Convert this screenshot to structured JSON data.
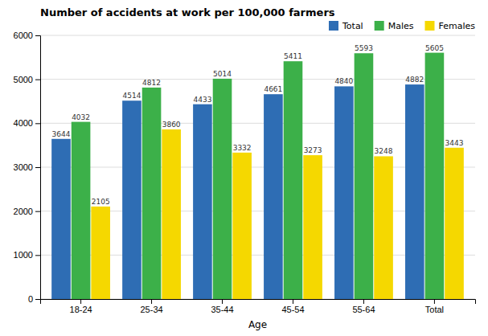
{
  "chart_data": {
    "type": "bar",
    "title": "Number of accidents at work per 100,000 farmers",
    "xlabel": "Age",
    "categories": [
      "18-24",
      "25-34",
      "35-44",
      "45-54",
      "55-64",
      "Total"
    ],
    "series": [
      {
        "name": "Total",
        "color": "#2e6db4",
        "values": [
          3644,
          4514,
          4433,
          4661,
          4840,
          4882
        ]
      },
      {
        "name": "Males",
        "color": "#3cb049",
        "values": [
          4032,
          4812,
          5014,
          5411,
          5593,
          5605
        ]
      },
      {
        "name": "Females",
        "color": "#f5d800",
        "values": [
          2105,
          3860,
          3332,
          3273,
          3248,
          3443
        ]
      }
    ],
    "ylim": [
      0,
      6000
    ],
    "yticks": [
      0,
      1000,
      2000,
      3000,
      4000,
      5000,
      6000
    ],
    "grid": true,
    "legend": "upper right",
    "data_labels": true
  }
}
